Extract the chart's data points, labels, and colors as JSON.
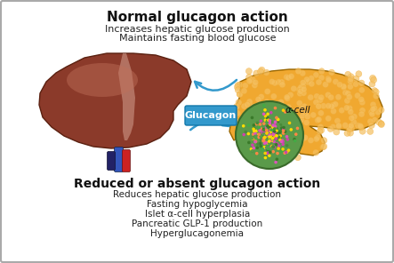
{
  "title_normal": "Normal glucagon action",
  "subtitle_normal_line1": "Increases hepatic glucose production",
  "subtitle_normal_line2": "Maintains fasting blood glucose",
  "title_reduced": "Reduced or absent glucagon action",
  "subtitle_reduced": [
    "Reduces hepatic glucose production",
    "Fasting hypoglycemia",
    "Islet α-cell hyperplasia",
    "Pancreatic GLP-1 production",
    "Hyperglucagonemia"
  ],
  "glucagon_label": "Glucagon",
  "alpha_cell_label": "α-cell",
  "bg_color": "#ffffff",
  "border_color": "#aaaaaa",
  "arrow_color": "#3399cc",
  "glucagon_box_color": "#3399cc",
  "glucagon_text_color": "#ffffff",
  "liver_main_color": "#8B3A2A",
  "liver_highlight_color": "#C0705A",
  "liver_pale_color": "#D4A090",
  "pancreas_color": "#F0A830",
  "pancreas_border": "#996600",
  "pancreas_light": "#F5C060",
  "islet_bg_color": "#5A9A4A",
  "islet_border_color": "#3A6A2A",
  "vessel_blue": "#3355BB",
  "vessel_red": "#CC2222",
  "vessel_dark": "#222266",
  "title_fontsize": 11,
  "subtitle_fontsize": 8,
  "reduced_title_fontsize": 10,
  "reduced_subtitle_fontsize": 7.5
}
